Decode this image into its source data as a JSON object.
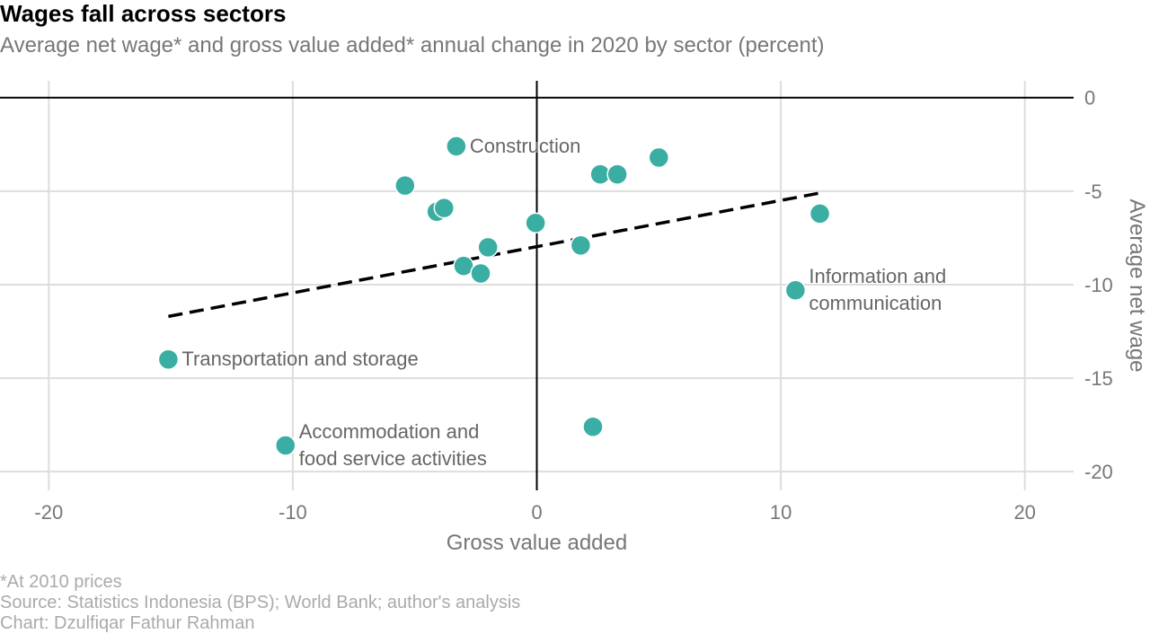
{
  "title": "Wages fall across sectors",
  "subtitle": "Average net wage* and gross value added* annual change in 2020 by sector (percent)",
  "footnotes": [
    "*At 2010 prices",
    "Source: Statistics Indonesia (BPS); World Bank; author's analysis",
    "Chart: Dzulfiqar Fathur Rahman"
  ],
  "colors": {
    "point": "#3aaea3",
    "grid": "#dddddd",
    "axis_text": "#777777",
    "trend": "#000000"
  },
  "chart_data": {
    "type": "scatter",
    "title": "Wages fall across sectors",
    "subtitle": "Average net wage* and gross value added* annual change in 2020 by sector (percent)",
    "xlabel": "Gross value added",
    "ylabel": "Average net wage",
    "xlim": [
      -22,
      22
    ],
    "ylim": [
      -21,
      0.9
    ],
    "xticks": [
      -20,
      -10,
      0,
      10,
      20
    ],
    "yticks": [
      0,
      -5,
      -10,
      -15,
      -20
    ],
    "y_axis_side": "right",
    "grid": true,
    "points": [
      {
        "x": -3.3,
        "y": -2.6,
        "label": "Construction"
      },
      {
        "x": -5.4,
        "y": -4.7
      },
      {
        "x": -4.1,
        "y": -6.1
      },
      {
        "x": -3.8,
        "y": -5.9
      },
      {
        "x": -2.0,
        "y": -8.0
      },
      {
        "x": -3.0,
        "y": -9.0
      },
      {
        "x": -2.3,
        "y": -9.4
      },
      {
        "x": -0.05,
        "y": -6.7
      },
      {
        "x": 1.8,
        "y": -7.9
      },
      {
        "x": 2.6,
        "y": -4.1
      },
      {
        "x": 3.3,
        "y": -4.1
      },
      {
        "x": 5.0,
        "y": -3.2
      },
      {
        "x": 11.6,
        "y": -6.2
      },
      {
        "x": 10.6,
        "y": -10.3,
        "label": "Information and\ncommunication"
      },
      {
        "x": -15.1,
        "y": -14.0,
        "label": "Transportation and storage"
      },
      {
        "x": -10.3,
        "y": -18.6,
        "label": "Accommodation and\nfood service activities"
      },
      {
        "x": 2.3,
        "y": -17.6
      }
    ],
    "trendline": {
      "x": [
        -15.1,
        11.6
      ],
      "y": [
        -11.7,
        -5.1
      ]
    }
  }
}
